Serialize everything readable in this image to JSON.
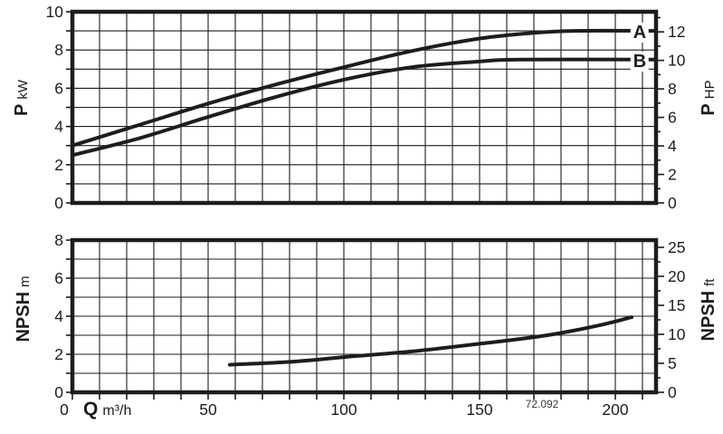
{
  "figure_code": "72.092",
  "colors": {
    "ink": "#1d1d1b",
    "background": "#ffffff"
  },
  "chart_data": [
    {
      "id": "power",
      "type": "line",
      "x": {
        "label": "Q",
        "unit": "m³/h",
        "min": 0,
        "max": 215,
        "grid_step": 10,
        "tick_step": 10,
        "ticks": [
          0,
          50,
          100,
          150,
          200
        ]
      },
      "y_left": {
        "label": "P",
        "unit": "kW",
        "min": 0,
        "max": 10,
        "grid_step": 1,
        "ticks": [
          0,
          2,
          4,
          6,
          8,
          10
        ]
      },
      "y_right": {
        "label": "P",
        "unit": "HP",
        "min": 0,
        "tick_step": 1,
        "label_step": 2,
        "left_units_per_unit": 0.7457,
        "ticks": [
          0,
          2,
          4,
          6,
          8,
          10,
          12
        ]
      },
      "legend_position": "end-of-curve",
      "grid": true,
      "series": [
        {
          "name": "A",
          "points": [
            [
              0,
              3.0
            ],
            [
              25,
              4.1
            ],
            [
              50,
              5.2
            ],
            [
              75,
              6.2
            ],
            [
              100,
              7.1
            ],
            [
              125,
              7.95
            ],
            [
              150,
              8.6
            ],
            [
              170,
              8.9
            ],
            [
              185,
              9.0
            ],
            [
              215,
              9.0
            ]
          ]
        },
        {
          "name": "B",
          "points": [
            [
              0,
              2.5
            ],
            [
              25,
              3.4
            ],
            [
              50,
              4.5
            ],
            [
              75,
              5.55
            ],
            [
              100,
              6.45
            ],
            [
              125,
              7.1
            ],
            [
              150,
              7.4
            ],
            [
              165,
              7.5
            ],
            [
              215,
              7.5
            ]
          ]
        }
      ]
    },
    {
      "id": "npsh",
      "type": "line",
      "x": {
        "label": "Q",
        "unit": "m³/h",
        "min": 0,
        "max": 215,
        "grid_step": 10,
        "tick_step": 10,
        "ticks": [
          0,
          50,
          100,
          150,
          200
        ]
      },
      "y_left": {
        "label": "NPSH",
        "unit": "m",
        "min": 0,
        "max": 8,
        "grid_step": 1,
        "ticks": [
          0,
          2,
          4,
          6,
          8
        ]
      },
      "y_right": {
        "label": "NPSH",
        "unit": "ft",
        "min": 0,
        "tick_step": 2.5,
        "label_step": 5,
        "left_units_per_unit": 0.3048,
        "ticks": [
          0,
          5,
          10,
          15,
          20,
          25
        ]
      },
      "grid": true,
      "series": [
        {
          "name": "NPSH",
          "points": [
            [
              58,
              1.45
            ],
            [
              80,
              1.6
            ],
            [
              100,
              1.85
            ],
            [
              125,
              2.15
            ],
            [
              150,
              2.55
            ],
            [
              175,
              3.0
            ],
            [
              195,
              3.55
            ],
            [
              206,
              3.95
            ]
          ]
        }
      ]
    }
  ]
}
